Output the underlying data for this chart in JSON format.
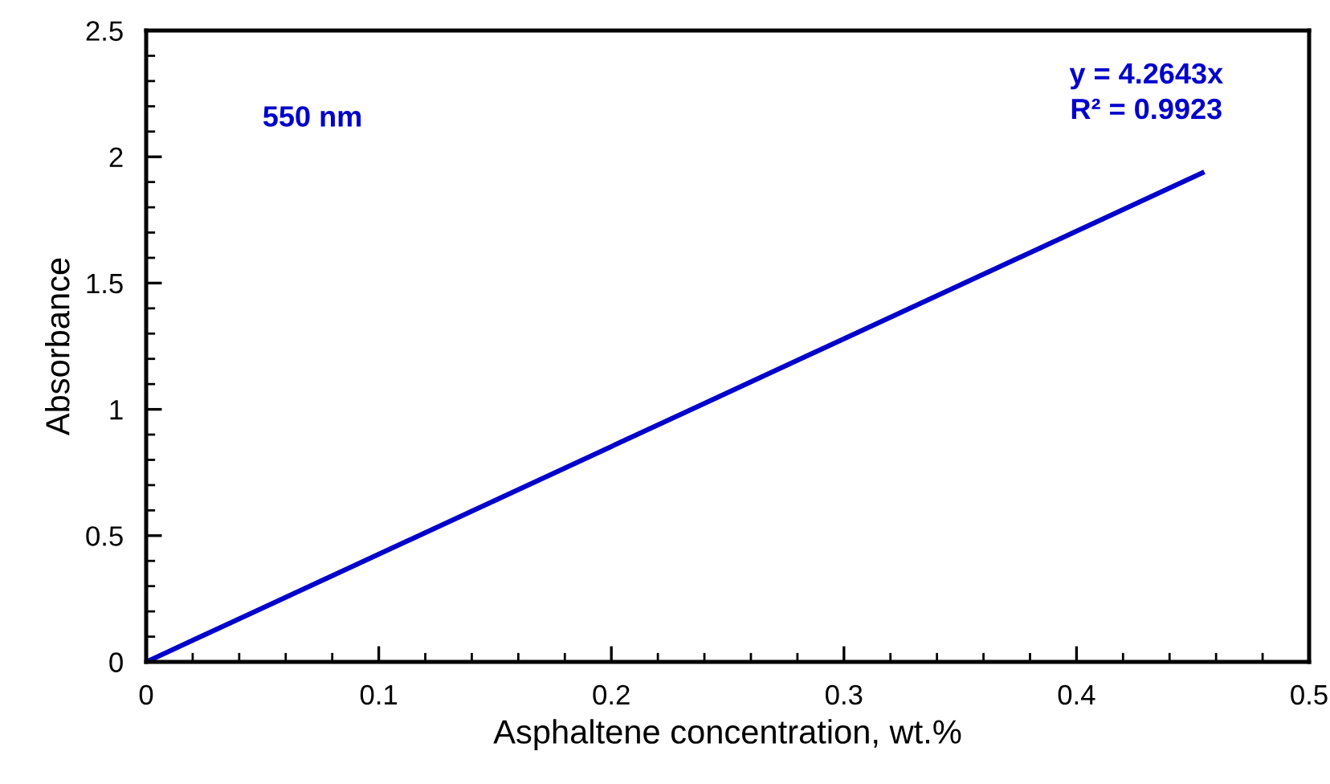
{
  "chart_data": {
    "type": "line",
    "xlabel": "Asphaltene concentration, wt.%",
    "ylabel": "Absorbance",
    "x": [
      0,
      0.454
    ],
    "series": [
      {
        "color": "#0000cc",
        "values": [
          0,
          1.936
        ]
      }
    ],
    "xlim": [
      0,
      0.5
    ],
    "xticks": [
      0,
      0.1,
      0.2,
      0.3,
      0.4,
      0.5
    ],
    "ylim": [
      0,
      2.5
    ],
    "yticks": [
      0,
      0.5,
      1,
      1.5,
      2,
      2.5
    ],
    "grid": false,
    "legend": false,
    "marker": "none",
    "line_style": "solid",
    "annotations": [
      "550 nm",
      "y = 4.2643x\nR² = 0.9923"
    ]
  }
}
